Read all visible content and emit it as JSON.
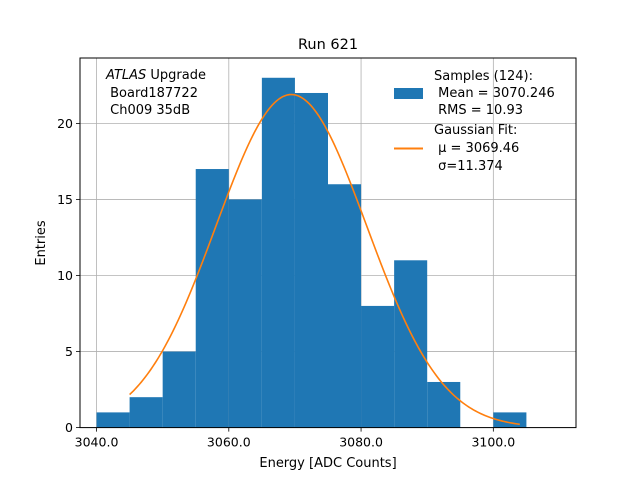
{
  "chart_data": {
    "type": "bar",
    "title": "Run 621",
    "xlabel": "Energy [ADC Counts]",
    "ylabel": "Entries",
    "xlim": [
      3037.5,
      3112.5
    ],
    "ylim": [
      0,
      24.3
    ],
    "x_ticks": [
      3040.0,
      3060.0,
      3080.0,
      3100.0
    ],
    "x_tick_labels": [
      "3040.0",
      "3060.0",
      "3080.0",
      "3100.0"
    ],
    "y_ticks": [
      0,
      5,
      10,
      15,
      20
    ],
    "y_tick_labels": [
      "0",
      "5",
      "10",
      "15",
      "20"
    ],
    "grid": true,
    "histogram": {
      "bin_edges": [
        3040,
        3045,
        3050,
        3055,
        3060,
        3065,
        3070,
        3075,
        3080,
        3085,
        3090,
        3095,
        3100,
        3105
      ],
      "counts": [
        1,
        2,
        5,
        17,
        15,
        23,
        22,
        16,
        8,
        11,
        3,
        0,
        1
      ],
      "color": "#1f77b4"
    },
    "fit": {
      "type": "gaussian",
      "amplitude": 21.9,
      "mu": 3069.46,
      "sigma": 11.374,
      "x_range": [
        3045,
        3104
      ],
      "color": "#ff7f0e"
    },
    "annotation": {
      "line1_italic": "ATLAS",
      "line1_rest": " Upgrade",
      "line2": " Board187722",
      "line3": " Ch009 35dB"
    },
    "legend": {
      "placement": "top-right",
      "samples_lines": [
        "Samples (124):",
        " Mean = 3070.246",
        " RMS = 10.93"
      ],
      "fit_lines": [
        "Gaussian Fit:",
        " μ = 3069.46",
        " σ=11.374"
      ]
    }
  }
}
